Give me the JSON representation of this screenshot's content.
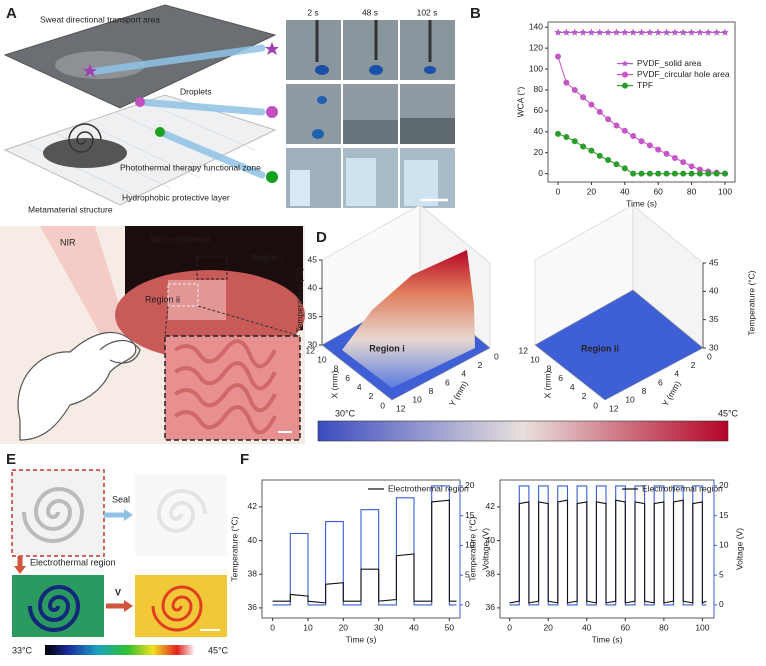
{
  "panel_labels": [
    "A",
    "B",
    "C",
    "D",
    "E",
    "F"
  ],
  "panel_a": {
    "labels": [
      "Sweat directional transport area",
      "Droplets",
      "Photothermal therapy functional zone",
      "Hydrophobic protective layer",
      "Metamaterial structure"
    ],
    "times": [
      "2 s",
      "48 s",
      "102 s"
    ]
  },
  "panel_c": {
    "labels": [
      "NIR",
      "Skin-conformal",
      "Region i",
      "Region ii"
    ]
  },
  "panel_d": {
    "z_label": "Temperature (°C)",
    "x_label": "X (mm)",
    "y_label": "Y (mm)",
    "regions": [
      "Region i",
      "Region ii"
    ],
    "z_ticks": [
      30,
      35,
      40,
      45
    ],
    "xy_ticks": [
      0,
      2,
      4,
      6,
      8,
      10,
      12
    ],
    "colorbar_labels": [
      "30°C",
      "45°C"
    ]
  },
  "panel_e": {
    "labels": [
      "Seal",
      "Electrothermal region",
      "V"
    ],
    "colorbar_labels": [
      "33°C",
      "45°C"
    ]
  },
  "chart_data": [
    {
      "type": "line",
      "x_label": "Time (s)",
      "y_label": "WCA (°)",
      "x": [
        0,
        5,
        10,
        15,
        20,
        25,
        30,
        35,
        40,
        45,
        50,
        55,
        60,
        65,
        70,
        75,
        80,
        85,
        90,
        95,
        100
      ],
      "series": [
        {
          "name": "PVDF_solid area",
          "color": "#b65cc8",
          "marker": "star",
          "values": [
            135,
            135,
            135,
            135,
            135,
            135,
            135,
            135,
            135,
            135,
            135,
            135,
            135,
            135,
            135,
            135,
            135,
            135,
            135,
            135,
            135
          ]
        },
        {
          "name": "PVDF_circular hole area",
          "color": "#c655c6",
          "marker": "circle",
          "values": [
            112,
            87,
            80,
            73,
            66,
            59,
            52,
            46,
            41,
            36,
            31,
            27,
            23,
            19,
            15,
            11,
            7,
            4,
            2,
            1,
            0
          ]
        },
        {
          "name": "TPF",
          "color": "#2a9d2a",
          "marker": "circle",
          "values": [
            38,
            35,
            31,
            26,
            22,
            17,
            13,
            9,
            5,
            0,
            0,
            0,
            0,
            0,
            0,
            0,
            0,
            0,
            0,
            0,
            0
          ]
        }
      ],
      "xlim": [
        -6,
        106
      ],
      "xticks": [
        0,
        20,
        40,
        60,
        80,
        100
      ],
      "ylim": [
        -8,
        145
      ],
      "yticks": [
        0,
        20,
        40,
        60,
        80,
        100,
        120,
        140
      ],
      "legend": "center right"
    },
    {
      "type": "line",
      "x_label": "Time (s)",
      "y_label": "Temperature (°C)",
      "y2_label": "Voltage (V)",
      "y2_color": "#3a5fcd",
      "series": [
        {
          "color": "#3a5fcd",
          "axis": "y2",
          "x": [
            0,
            5,
            5,
            10,
            10,
            15,
            15,
            20,
            20,
            25,
            25,
            30,
            30,
            35,
            35,
            40,
            40,
            45,
            45,
            50,
            50,
            52
          ],
          "values": [
            0,
            0,
            12,
            12,
            0,
            0,
            14,
            14,
            0,
            0,
            16,
            16,
            0,
            0,
            18,
            18,
            0,
            0,
            20,
            20,
            0,
            0
          ]
        },
        {
          "name": "Electrothermal region",
          "color": "#111111",
          "x": [
            0,
            5,
            5,
            10,
            10,
            15,
            15,
            20,
            20,
            25,
            25,
            30,
            30,
            35,
            35,
            40,
            40,
            45,
            45,
            50,
            50,
            52
          ],
          "values": [
            36.4,
            36.4,
            36.8,
            36.7,
            36.4,
            36.3,
            37.4,
            37.5,
            36.4,
            36.4,
            38.3,
            38.3,
            36.4,
            36.5,
            39.1,
            39.2,
            36.4,
            36.4,
            42.3,
            42.4,
            36.4,
            36.4
          ]
        }
      ],
      "xlim": [
        -3,
        53
      ],
      "xticks": [
        0,
        10,
        20,
        30,
        40,
        50
      ],
      "ylim": [
        35.4,
        43.6
      ],
      "yticks": [
        36,
        38,
        40,
        42
      ],
      "y2lim": [
        -2.2,
        21
      ],
      "y2ticks": [
        0,
        5,
        10,
        15,
        20
      ],
      "legend": "upper right"
    },
    {
      "type": "line",
      "x_label": "Time (s)",
      "y_label": "Temperature (°C)",
      "y2_label": "Voltage (V)",
      "y2_color": "#3a5fcd",
      "series": [
        {
          "color": "#3a5fcd",
          "axis": "y2",
          "x": [
            0,
            5,
            5,
            10,
            10,
            15,
            15,
            20,
            20,
            25,
            25,
            30,
            30,
            35,
            35,
            40,
            40,
            45,
            45,
            50,
            50,
            55,
            55,
            60,
            60,
            65,
            65,
            70,
            70,
            75,
            75,
            80,
            80,
            85,
            85,
            90,
            90,
            95,
            95,
            100,
            100,
            102
          ],
          "values": [
            0,
            0,
            20,
            20,
            0,
            0,
            20,
            20,
            0,
            0,
            20,
            20,
            0,
            0,
            20,
            20,
            0,
            0,
            20,
            20,
            0,
            0,
            20,
            20,
            0,
            0,
            20,
            20,
            0,
            0,
            20,
            20,
            0,
            0,
            20,
            20,
            0,
            0,
            20,
            20,
            0,
            0
          ]
        },
        {
          "name": "Electrothermal region",
          "color": "#111111",
          "x": [
            0,
            5,
            5,
            10,
            10,
            15,
            15,
            20,
            20,
            25,
            25,
            30,
            30,
            35,
            35,
            40,
            40,
            45,
            45,
            50,
            50,
            55,
            55,
            60,
            60,
            65,
            65,
            70,
            70,
            75,
            75,
            80,
            80,
            85,
            85,
            90,
            90,
            95,
            95,
            100,
            100,
            102
          ],
          "values": [
            36.3,
            36.4,
            42.2,
            42.3,
            36.3,
            36.4,
            42.3,
            42.2,
            36.4,
            36.3,
            42.3,
            42.4,
            36.3,
            36.4,
            42.2,
            42.3,
            36.4,
            36.3,
            42.3,
            42.2,
            36.3,
            36.4,
            42.4,
            42.3,
            36.3,
            36.4,
            42.3,
            42.2,
            36.4,
            36.3,
            42.2,
            42.3,
            36.3,
            36.4,
            42.3,
            42.4,
            36.4,
            36.3,
            42.2,
            42.3,
            36.3,
            36.4
          ]
        }
      ],
      "xlim": [
        -5,
        106
      ],
      "xticks": [
        0,
        20,
        40,
        60,
        80,
        100
      ],
      "ylim": [
        35.4,
        43.6
      ],
      "yticks": [
        36,
        38,
        40,
        42
      ],
      "y2lim": [
        -2.2,
        21
      ],
      "y2ticks": [
        0,
        5,
        10,
        15,
        20
      ],
      "legend": "upper right"
    }
  ]
}
